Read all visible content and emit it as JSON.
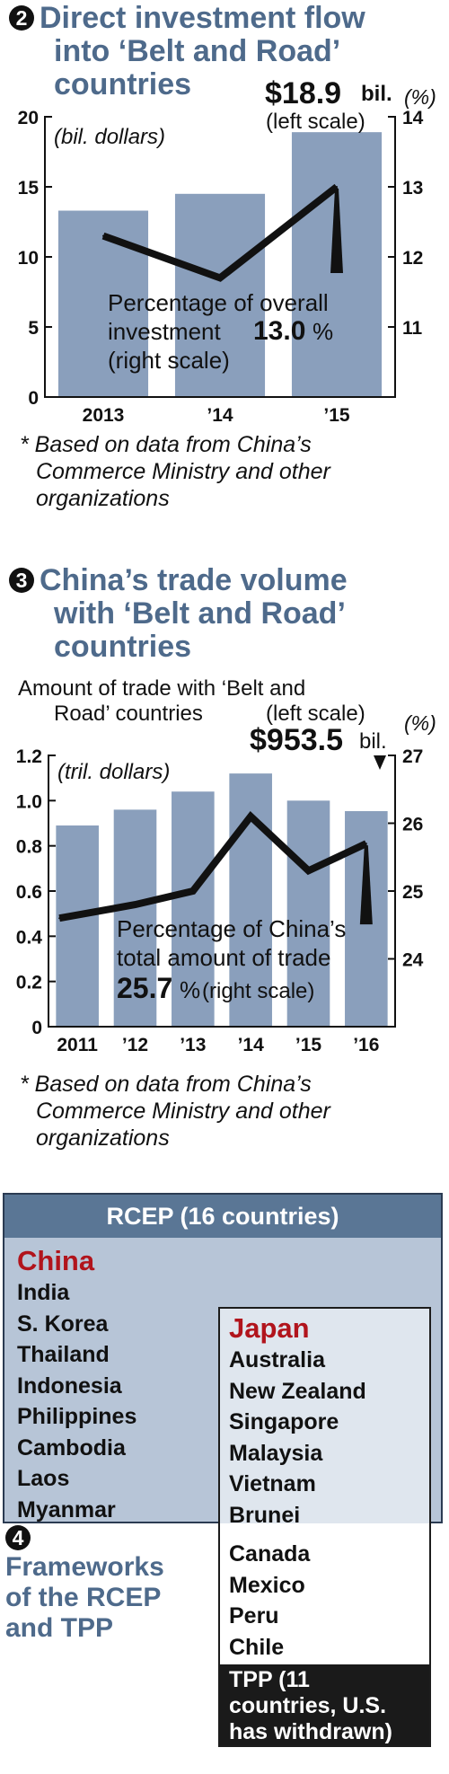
{
  "section2": {
    "number": "2",
    "title_lines": [
      "Direct investment flow",
      "into ‘Belt and Road’",
      "countries"
    ],
    "note_lines": [
      "* Based on data from China’s",
      "Commerce Ministry and other",
      "organizations"
    ]
  },
  "section3": {
    "number": "3",
    "title_lines": [
      "China’s trade volume",
      "with ‘Belt and Road’",
      "countries"
    ],
    "note_lines": [
      "* Based on data from China’s",
      "Commerce Ministry and other",
      "organizations"
    ]
  },
  "section4": {
    "number": "4",
    "title_lines": [
      "Frameworks",
      "of the RCEP",
      "and TPP"
    ],
    "rcep_header": "RCEP (16 countries)",
    "rcep_lead": "China",
    "rcep_only": [
      "India",
      "S. Korea",
      "Thailand",
      "Indonesia",
      "Philippines",
      "Cambodia",
      "Laos",
      "Myanmar"
    ],
    "shared_lead": "Japan",
    "shared": [
      "Australia",
      "New Zealand",
      "Singapore",
      "Malaysia",
      "Vietnam",
      "Brunei"
    ],
    "tpp_only": [
      "Canada",
      "Mexico",
      "Peru",
      "Chile"
    ],
    "tpp_footer": "TPP (11 countries, U.S. has withdrawn)",
    "colors": {
      "rcep_header": "#5a7695",
      "rcep_fill": "#b7c5d7",
      "lead": "#b1141c",
      "tpp_footer": "#1a1a1a"
    }
  },
  "chart_data": [
    {
      "type": "bar",
      "categories": [
        "2013",
        "’14",
        "’15"
      ],
      "series": [
        {
          "values": [
            13.3,
            14.5,
            18.9
          ],
          "axis": "left",
          "kind": "bar",
          "color": "#8a9fbc"
        },
        {
          "values": [
            12.3,
            11.7,
            13.0
          ],
          "axis": "right",
          "kind": "line",
          "color": "#111111"
        }
      ],
      "left_axis": {
        "label": "(bil. dollars)",
        "ylim": [
          0,
          20
        ],
        "ticks": [
          "0",
          "5",
          "10",
          "15",
          "20"
        ]
      },
      "right_axis": {
        "label": "(%)",
        "ylim": [
          10,
          14
        ],
        "ticks": [
          "11",
          "12",
          "13",
          "14"
        ]
      },
      "annotations": {
        "bar_value": "$18.9",
        "bar_unit": "bil.",
        "bar_scale": "(left scale)",
        "line_label_1": "Percentage of overall",
        "line_label_2": "investment",
        "line_value": "13.0",
        "line_pct": "%",
        "line_scale": "(right scale)"
      },
      "grid": false
    },
    {
      "type": "bar",
      "categories": [
        "2011",
        "’12",
        "’13",
        "’14",
        "’15",
        "’16"
      ],
      "series": [
        {
          "values": [
            0.89,
            0.96,
            1.04,
            1.12,
            1.0,
            0.9535
          ],
          "axis": "left",
          "kind": "bar",
          "color": "#8a9fbc"
        },
        {
          "values": [
            24.6,
            24.8,
            25.0,
            26.1,
            25.3,
            25.7
          ],
          "axis": "right",
          "kind": "line",
          "color": "#111111"
        }
      ],
      "left_axis": {
        "label": "(tril. dollars)",
        "ylim": [
          0,
          1.2
        ],
        "ticks": [
          "0",
          "0.2",
          "0.4",
          "0.6",
          "0.8",
          "1.0",
          "1.2"
        ]
      },
      "right_axis": {
        "label": "(%)",
        "ylim": [
          23,
          27
        ],
        "ticks": [
          "24",
          "25",
          "26",
          "27"
        ]
      },
      "series_label_lines": [
        "Amount of trade with ‘Belt and",
        "Road’ countries"
      ],
      "series_label_scale": "(left scale)",
      "annotations": {
        "bar_value": "$953.5",
        "bar_unit": "bil.",
        "line_label_1": "Percentage of China’s",
        "line_label_2": "total amount of trade",
        "line_value": "25.7",
        "line_pct": "%",
        "line_scale": "(right scale)"
      },
      "grid": false
    }
  ]
}
